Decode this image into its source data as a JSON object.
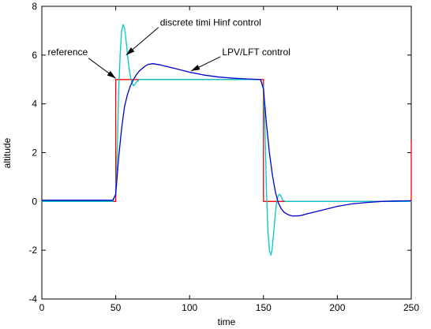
{
  "chart_data": {
    "type": "line",
    "title": "",
    "xlabel": "time",
    "ylabel": "altitude",
    "xlim": [
      0,
      250
    ],
    "ylim": [
      -4,
      8
    ],
    "grid": false,
    "xticks": [
      0,
      50,
      100,
      150,
      200,
      250
    ],
    "yticks": [
      -4,
      -2,
      0,
      2,
      4,
      6,
      8
    ],
    "series": [
      {
        "name": "reference",
        "color": "#ff0000",
        "x": [
          0,
          50,
          50,
          150,
          150,
          250,
          250
        ],
        "y": [
          0,
          0,
          5,
          5,
          0,
          0,
          2.5
        ]
      },
      {
        "name": "discrete timi Hinf control",
        "color": "#00c8c8",
        "x": [
          0,
          20,
          48,
          50,
          51,
          52,
          53,
          54,
          55,
          56,
          57,
          58,
          59,
          60,
          61,
          62,
          63,
          64,
          66,
          68,
          70,
          80,
          100,
          148,
          150,
          151,
          152,
          153,
          154,
          155,
          156,
          157,
          158,
          159,
          160,
          161,
          162,
          163,
          165,
          170,
          200,
          250
        ],
        "y": [
          0,
          0,
          0,
          0.3,
          2.0,
          4.5,
          6.0,
          7.0,
          7.25,
          7.1,
          6.6,
          6.0,
          5.5,
          5.1,
          4.85,
          4.75,
          4.8,
          4.9,
          5.0,
          5.0,
          5.0,
          5.0,
          5.0,
          5.0,
          4.7,
          3.0,
          0.5,
          -1.2,
          -2.0,
          -2.2,
          -1.9,
          -1.2,
          -0.5,
          0.0,
          0.25,
          0.3,
          0.2,
          0.05,
          0.0,
          0.0,
          0.0,
          0.0
        ]
      },
      {
        "name": "LPV/LFT control",
        "color": "#0000cc",
        "x": [
          0,
          20,
          48,
          50,
          52,
          54,
          56,
          58,
          60,
          62,
          64,
          66,
          68,
          70,
          72,
          75,
          80,
          90,
          100,
          110,
          120,
          130,
          140,
          148,
          150,
          152,
          154,
          156,
          158,
          160,
          162,
          164,
          166,
          168,
          170,
          175,
          180,
          190,
          200,
          210,
          220,
          230,
          240,
          250
        ],
        "y": [
          0.05,
          0.05,
          0.05,
          0.3,
          1.8,
          3.0,
          3.9,
          4.4,
          4.75,
          5.0,
          5.2,
          5.35,
          5.45,
          5.55,
          5.62,
          5.65,
          5.6,
          5.45,
          5.3,
          5.18,
          5.1,
          5.05,
          5.02,
          5.0,
          4.6,
          3.2,
          2.0,
          1.1,
          0.4,
          -0.05,
          -0.3,
          -0.45,
          -0.52,
          -0.57,
          -0.6,
          -0.58,
          -0.5,
          -0.35,
          -0.2,
          -0.1,
          -0.04,
          0.0,
          0.02,
          0.03
        ]
      }
    ],
    "annotations": [
      {
        "text": "reference",
        "x": 4,
        "y": 6.0,
        "arrow_to": [
          50,
          5.05
        ]
      },
      {
        "text": "discrete timi Hinf control",
        "x": 80,
        "y": 7.2,
        "arrow_to": [
          57,
          6.0
        ]
      },
      {
        "text": "LPV/LFT control",
        "x": 122,
        "y": 6.0,
        "arrow_to": [
          101,
          5.35
        ]
      }
    ]
  }
}
